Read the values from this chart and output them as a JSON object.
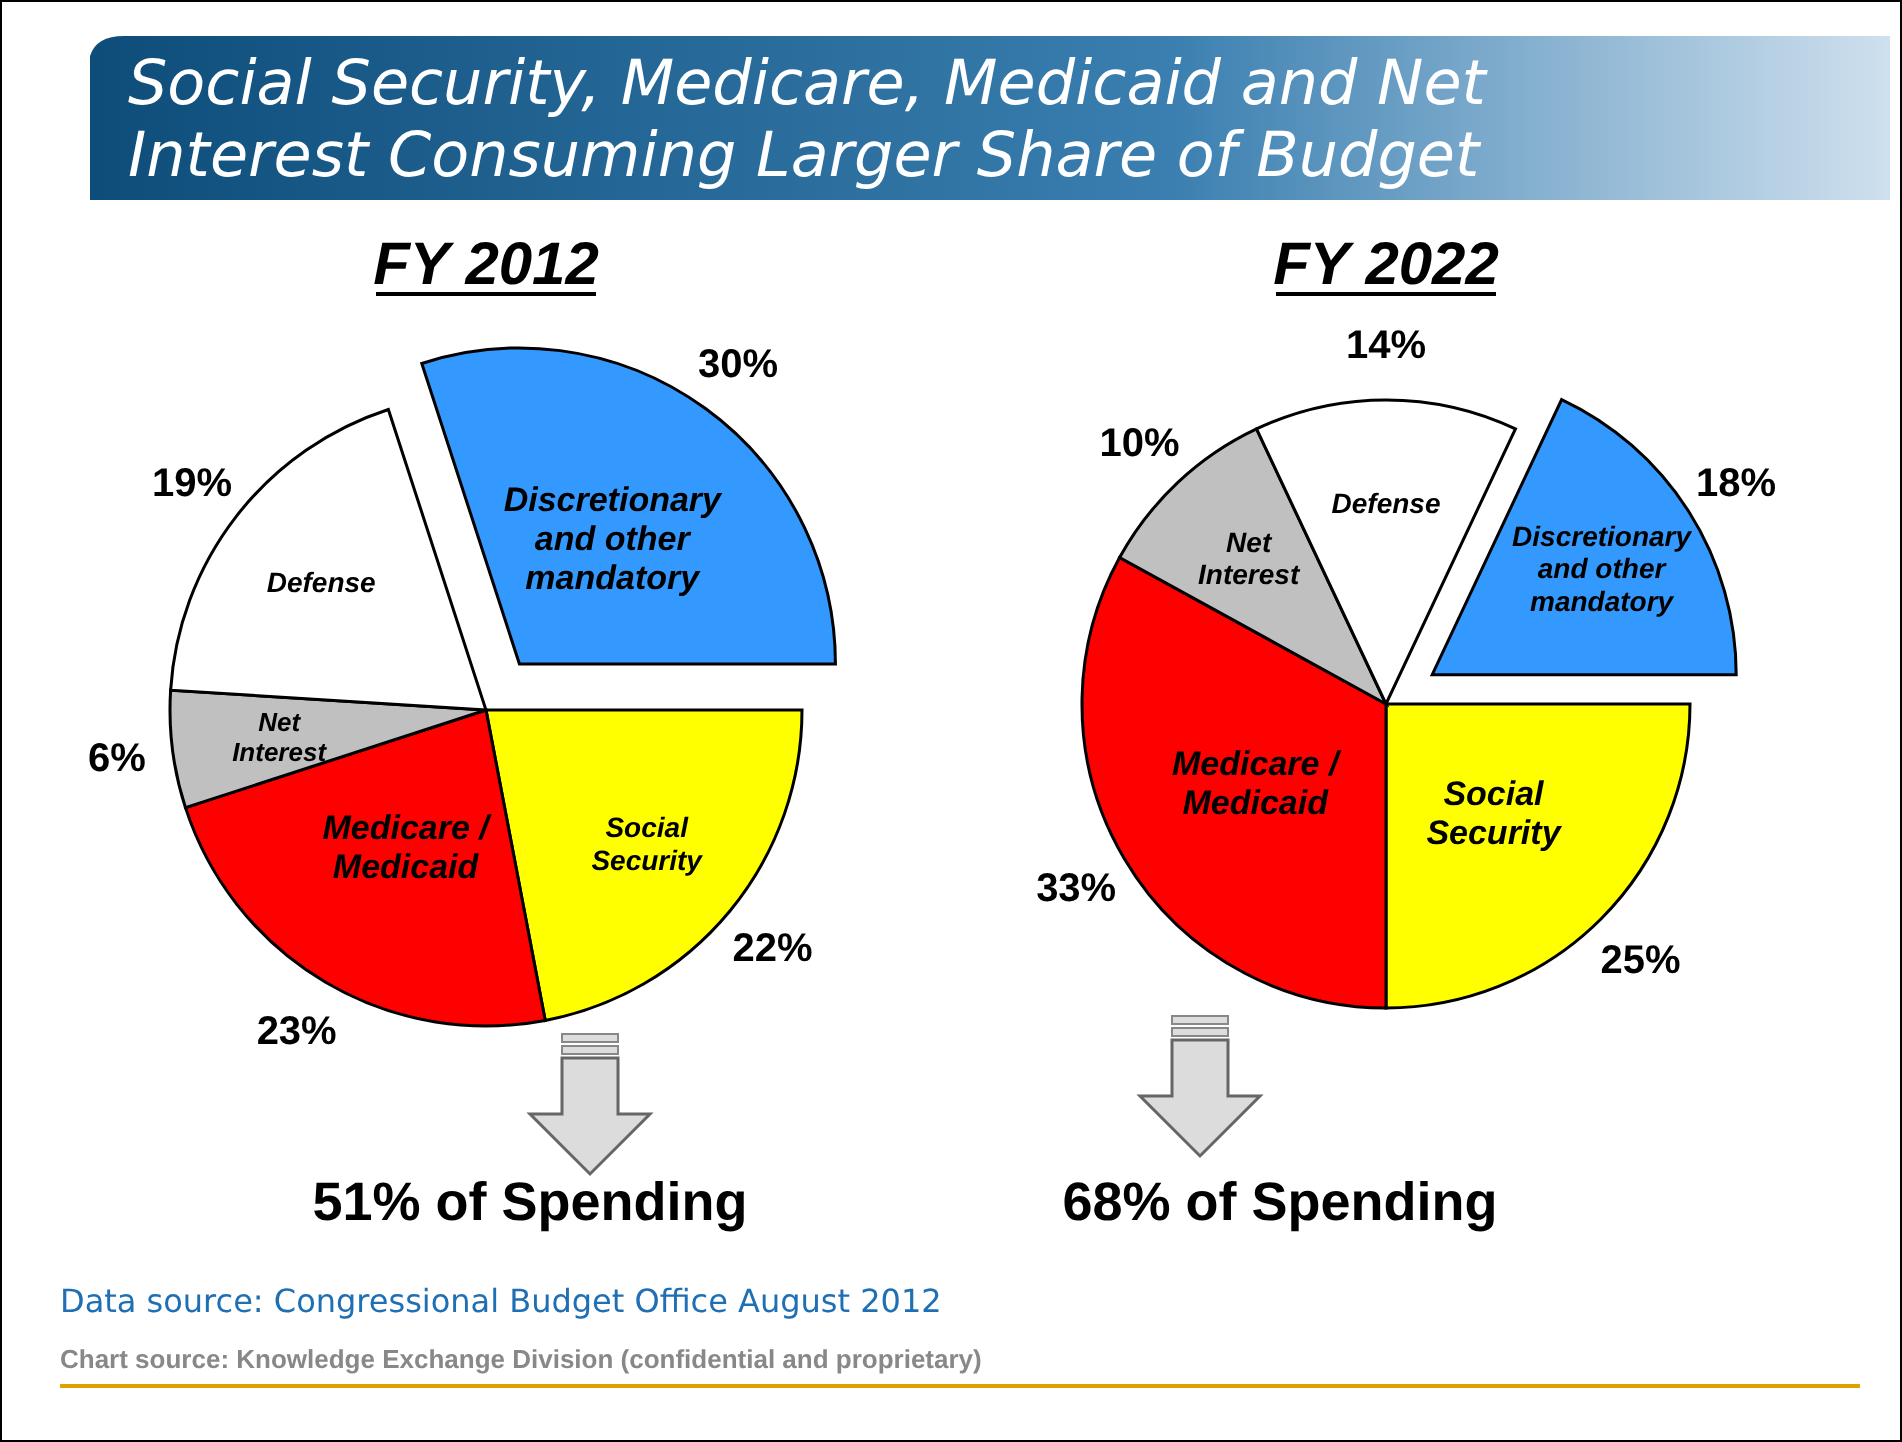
{
  "chart_data": [
    {
      "type": "pie",
      "title": "FY 2012",
      "categories": [
        "Social Security",
        "Medicare / Medicaid",
        "Net Interest",
        "Defense",
        "Discretionary and other mandatory"
      ],
      "values": [
        22,
        23,
        6,
        19,
        30
      ],
      "value_labels": [
        "22%",
        "23%",
        "6%",
        "19%",
        "30%"
      ],
      "colors": [
        "#ffff00",
        "#ff0000",
        "#c0c0c0",
        "#ffffff",
        "#3399ff"
      ],
      "annotations": [
        "51% of Spending",
        "Social Security, Medicare, Medicaid and Net Interest Consuming Larger Share of Budget",
        "Data source: Congressional Budget Office August 2012",
        "Chart source: Knowledge Exchange Division (confidential and proprietary)"
      ]
    },
    {
      "type": "pie",
      "title": "FY 2022",
      "categories": [
        "Social Security",
        "Medicare / Medicaid",
        "Net Interest",
        "Defense",
        "Discretionary and other mandatory"
      ],
      "values": [
        25,
        33,
        10,
        14,
        18
      ],
      "value_labels": [
        "25%",
        "33%",
        "10%",
        "14%",
        "18%"
      ],
      "colors": [
        "#ffff00",
        "#ff0000",
        "#c0c0c0",
        "#ffffff",
        "#3399ff"
      ],
      "annotations": [
        "68% of Spending"
      ]
    }
  ]
}
